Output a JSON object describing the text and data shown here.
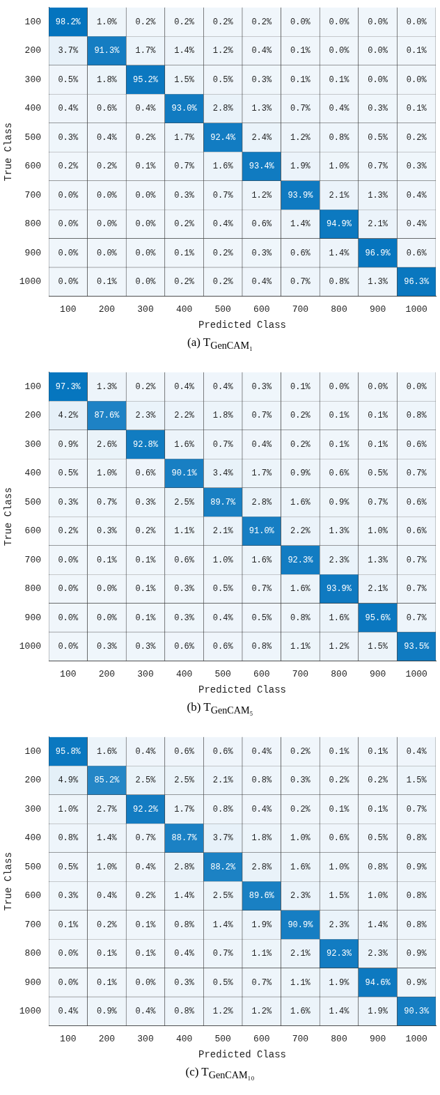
{
  "chart_data": [
    {
      "type": "heatmap",
      "title": "(a) T$_{GenCAM₁}$",
      "xlabel": "Predicted Class",
      "ylabel": "True Class",
      "categories": [
        "100",
        "200",
        "300",
        "400",
        "500",
        "600",
        "700",
        "800",
        "900",
        "1000"
      ],
      "y_categories": [
        "100",
        "200",
        "300",
        "400",
        "500",
        "600",
        "700",
        "800",
        "900",
        "1000"
      ],
      "cells": [
        [
          98.2,
          1.0,
          0.2,
          0.2,
          0.2,
          0.2,
          0.0,
          0.0,
          0.0,
          0.0
        ],
        [
          3.7,
          91.3,
          1.7,
          1.4,
          1.2,
          0.4,
          0.1,
          0.0,
          0.0,
          0.1
        ],
        [
          0.5,
          1.8,
          95.2,
          1.5,
          0.5,
          0.3,
          0.1,
          0.1,
          0.0,
          0.0
        ],
        [
          0.4,
          0.6,
          0.4,
          93.0,
          2.8,
          1.3,
          0.7,
          0.4,
          0.3,
          0.1
        ],
        [
          0.3,
          0.4,
          0.2,
          1.7,
          92.4,
          2.4,
          1.2,
          0.8,
          0.5,
          0.2
        ],
        [
          0.2,
          0.2,
          0.1,
          0.7,
          1.6,
          93.4,
          1.9,
          1.0,
          0.7,
          0.3
        ],
        [
          0.0,
          0.0,
          0.0,
          0.3,
          0.7,
          1.2,
          93.9,
          2.1,
          1.3,
          0.4
        ],
        [
          0.0,
          0.0,
          0.0,
          0.2,
          0.4,
          0.6,
          1.4,
          94.9,
          2.1,
          0.4
        ],
        [
          0.0,
          0.0,
          0.0,
          0.1,
          0.2,
          0.3,
          0.6,
          1.4,
          96.9,
          0.6
        ],
        [
          0.0,
          0.1,
          0.0,
          0.2,
          0.2,
          0.4,
          0.7,
          0.8,
          1.3,
          96.3
        ]
      ],
      "cell_labels": [
        [
          "98.2%",
          "1.0%",
          "0.2%",
          "0.2%",
          "0.2%",
          "0.2%",
          "0.0%",
          "0.0%",
          "0.0%",
          "0.0%"
        ],
        [
          "3.7%",
          "91.3%",
          "1.7%",
          "1.4%",
          "1.2%",
          "0.4%",
          "0.1%",
          "0.0%",
          "0.0%",
          "0.1%"
        ],
        [
          "0.5%",
          "1.8%",
          "95.2%",
          "1.5%",
          "0.5%",
          "0.3%",
          "0.1%",
          "0.1%",
          "0.0%",
          "0.0%"
        ],
        [
          "0.4%",
          "0.6%",
          "0.4%",
          "93.0%",
          "2.8%",
          "1.3%",
          "0.7%",
          "0.4%",
          "0.3%",
          "0.1%"
        ],
        [
          "0.3%",
          "0.4%",
          "0.2%",
          "1.7%",
          "92.4%",
          "2.4%",
          "1.2%",
          "0.8%",
          "0.5%",
          "0.2%"
        ],
        [
          "0.2%",
          "0.2%",
          "0.1%",
          "0.7%",
          "1.6%",
          "93.4%",
          "1.9%",
          "1.0%",
          "0.7%",
          "0.3%"
        ],
        [
          "0.0%",
          "0.0%",
          "0.0%",
          "0.3%",
          "0.7%",
          "1.2%",
          "93.9%",
          "2.1%",
          "1.3%",
          "0.4%"
        ],
        [
          "0.0%",
          "0.0%",
          "0.0%",
          "0.2%",
          "0.4%",
          "0.6%",
          "1.4%",
          "94.9%",
          "2.1%",
          "0.4%"
        ],
        [
          "0.0%",
          "0.0%",
          "0.0%",
          "0.1%",
          "0.2%",
          "0.3%",
          "0.6%",
          "1.4%",
          "96.9%",
          "0.6%"
        ],
        [
          "0.0%",
          "0.1%",
          "0.0%",
          "0.2%",
          "0.2%",
          "0.4%",
          "0.7%",
          "0.8%",
          "1.3%",
          "96.3%"
        ]
      ]
    },
    {
      "type": "heatmap",
      "title": "(b) T$_{GenCAM₅}$",
      "xlabel": "Predicted Class",
      "ylabel": "True Class",
      "categories": [
        "100",
        "200",
        "300",
        "400",
        "500",
        "600",
        "700",
        "800",
        "900",
        "1000"
      ],
      "y_categories": [
        "100",
        "200",
        "300",
        "400",
        "500",
        "600",
        "700",
        "800",
        "900",
        "1000"
      ],
      "cells": [
        [
          97.3,
          1.3,
          0.2,
          0.4,
          0.4,
          0.3,
          0.1,
          0.0,
          0.0,
          0.0
        ],
        [
          4.2,
          87.6,
          2.3,
          2.2,
          1.8,
          0.7,
          0.2,
          0.1,
          0.1,
          0.8
        ],
        [
          0.9,
          2.6,
          92.8,
          1.6,
          0.7,
          0.4,
          0.2,
          0.1,
          0.1,
          0.6
        ],
        [
          0.5,
          1.0,
          0.6,
          90.1,
          3.4,
          1.7,
          0.9,
          0.6,
          0.5,
          0.7
        ],
        [
          0.3,
          0.7,
          0.3,
          2.5,
          89.7,
          2.8,
          1.6,
          0.9,
          0.7,
          0.6
        ],
        [
          0.2,
          0.3,
          0.2,
          1.1,
          2.1,
          91.0,
          2.2,
          1.3,
          1.0,
          0.6
        ],
        [
          0.0,
          0.1,
          0.1,
          0.6,
          1.0,
          1.6,
          92.3,
          2.3,
          1.3,
          0.7
        ],
        [
          0.0,
          0.0,
          0.1,
          0.3,
          0.5,
          0.7,
          1.6,
          93.9,
          2.1,
          0.7
        ],
        [
          0.0,
          0.0,
          0.1,
          0.3,
          0.4,
          0.5,
          0.8,
          1.6,
          95.6,
          0.7
        ],
        [
          0.0,
          0.3,
          0.3,
          0.6,
          0.6,
          0.8,
          1.1,
          1.2,
          1.5,
          93.5
        ]
      ],
      "cell_labels": [
        [
          "97.3%",
          "1.3%",
          "0.2%",
          "0.4%",
          "0.4%",
          "0.3%",
          "0.1%",
          "0.0%",
          "0.0%",
          "0.0%"
        ],
        [
          "4.2%",
          "87.6%",
          "2.3%",
          "2.2%",
          "1.8%",
          "0.7%",
          "0.2%",
          "0.1%",
          "0.1%",
          "0.8%"
        ],
        [
          "0.9%",
          "2.6%",
          "92.8%",
          "1.6%",
          "0.7%",
          "0.4%",
          "0.2%",
          "0.1%",
          "0.1%",
          "0.6%"
        ],
        [
          "0.5%",
          "1.0%",
          "0.6%",
          "90.1%",
          "3.4%",
          "1.7%",
          "0.9%",
          "0.6%",
          "0.5%",
          "0.7%"
        ],
        [
          "0.3%",
          "0.7%",
          "0.3%",
          "2.5%",
          "89.7%",
          "2.8%",
          "1.6%",
          "0.9%",
          "0.7%",
          "0.6%"
        ],
        [
          "0.2%",
          "0.3%",
          "0.2%",
          "1.1%",
          "2.1%",
          "91.0%",
          "2.2%",
          "1.3%",
          "1.0%",
          "0.6%"
        ],
        [
          "0.0%",
          "0.1%",
          "0.1%",
          "0.6%",
          "1.0%",
          "1.6%",
          "92.3%",
          "2.3%",
          "1.3%",
          "0.7%"
        ],
        [
          "0.0%",
          "0.0%",
          "0.1%",
          "0.3%",
          "0.5%",
          "0.7%",
          "1.6%",
          "93.9%",
          "2.1%",
          "0.7%"
        ],
        [
          "0.0%",
          "0.0%",
          "0.1%",
          "0.3%",
          "0.4%",
          "0.5%",
          "0.8%",
          "1.6%",
          "95.6%",
          "0.7%"
        ],
        [
          "0.0%",
          "0.3%",
          "0.3%",
          "0.6%",
          "0.6%",
          "0.8%",
          "1.1%",
          "1.2%",
          "1.5%",
          "93.5%"
        ]
      ]
    },
    {
      "type": "heatmap",
      "title": "(c) T$_{GenCAM₁₀}$",
      "xlabel": "Predicted Class",
      "ylabel": "True Class",
      "categories": [
        "100",
        "200",
        "300",
        "400",
        "500",
        "600",
        "700",
        "800",
        "900",
        "1000"
      ],
      "y_categories": [
        "100",
        "200",
        "300",
        "400",
        "500",
        "600",
        "700",
        "800",
        "900",
        "1000"
      ],
      "cells": [
        [
          95.8,
          1.6,
          0.4,
          0.6,
          0.6,
          0.4,
          0.2,
          0.1,
          0.1,
          0.4
        ],
        [
          4.9,
          85.2,
          2.5,
          2.5,
          2.1,
          0.8,
          0.3,
          0.2,
          0.2,
          1.5
        ],
        [
          1.0,
          2.7,
          92.2,
          1.7,
          0.8,
          0.4,
          0.2,
          0.1,
          0.1,
          0.7
        ],
        [
          0.8,
          1.4,
          0.7,
          88.7,
          3.7,
          1.8,
          1.0,
          0.6,
          0.5,
          0.8
        ],
        [
          0.5,
          1.0,
          0.4,
          2.8,
          88.2,
          2.8,
          1.6,
          1.0,
          0.8,
          0.9
        ],
        [
          0.3,
          0.4,
          0.2,
          1.4,
          2.5,
          89.6,
          2.3,
          1.5,
          1.0,
          0.8
        ],
        [
          0.1,
          0.2,
          0.1,
          0.8,
          1.4,
          1.9,
          90.9,
          2.3,
          1.4,
          0.8
        ],
        [
          0.0,
          0.1,
          0.1,
          0.4,
          0.7,
          1.1,
          2.1,
          92.3,
          2.3,
          0.9
        ],
        [
          0.0,
          0.1,
          0.0,
          0.3,
          0.5,
          0.7,
          1.1,
          1.9,
          94.6,
          0.9
        ],
        [
          0.4,
          0.9,
          0.4,
          0.8,
          1.2,
          1.2,
          1.6,
          1.4,
          1.9,
          90.3
        ]
      ],
      "cell_labels": [
        [
          "95.8%",
          "1.6%",
          "0.4%",
          "0.6%",
          "0.6%",
          "0.4%",
          "0.2%",
          "0.1%",
          "0.1%",
          "0.4%"
        ],
        [
          "4.9%",
          "85.2%",
          "2.5%",
          "2.5%",
          "2.1%",
          "0.8%",
          "0.3%",
          "0.2%",
          "0.2%",
          "1.5%"
        ],
        [
          "1.0%",
          "2.7%",
          "92.2%",
          "1.7%",
          "0.8%",
          "0.4%",
          "0.2%",
          "0.1%",
          "0.1%",
          "0.7%"
        ],
        [
          "0.8%",
          "1.4%",
          "0.7%",
          "88.7%",
          "3.7%",
          "1.8%",
          "1.0%",
          "0.6%",
          "0.5%",
          "0.8%"
        ],
        [
          "0.5%",
          "1.0%",
          "0.4%",
          "2.8%",
          "88.2%",
          "2.8%",
          "1.6%",
          "1.0%",
          "0.8%",
          "0.9%"
        ],
        [
          "0.3%",
          "0.4%",
          "0.2%",
          "1.4%",
          "2.5%",
          "89.6%",
          "2.3%",
          "1.5%",
          "1.0%",
          "0.8%"
        ],
        [
          "0.1%",
          "0.2%",
          "0.1%",
          "0.8%",
          "1.4%",
          "1.9%",
          "90.9%",
          "2.3%",
          "1.4%",
          "0.8%"
        ],
        [
          "0.0%",
          "0.1%",
          "0.1%",
          "0.4%",
          "0.7%",
          "1.1%",
          "2.1%",
          "92.3%",
          "2.3%",
          "0.9%"
        ],
        [
          "0.0%",
          "0.1%",
          "0.0%",
          "0.3%",
          "0.5%",
          "0.7%",
          "1.1%",
          "1.9%",
          "94.6%",
          "0.9%"
        ],
        [
          "0.4%",
          "0.9%",
          "0.4%",
          "0.8%",
          "1.2%",
          "1.2%",
          "1.6%",
          "1.4%",
          "1.9%",
          "90.3%"
        ]
      ]
    }
  ]
}
